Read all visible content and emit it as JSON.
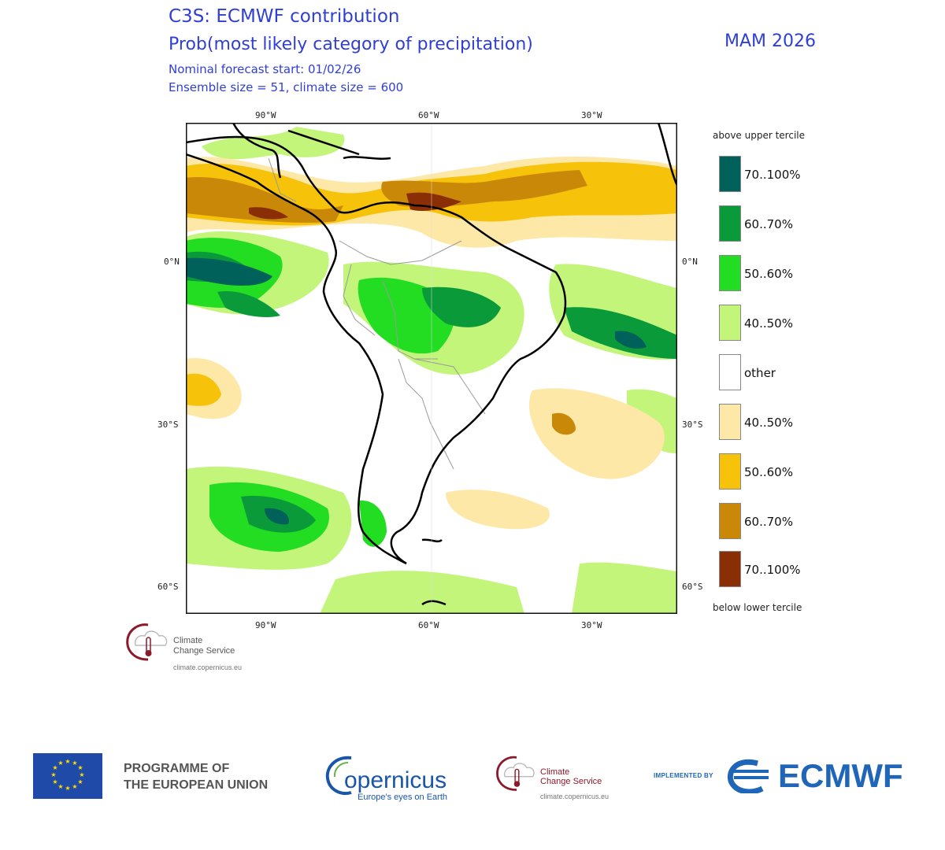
{
  "header": {
    "title_line1": "C3S: ECMWF contribution",
    "title_line2": "Prob(most likely category of precipitation)",
    "season": "MAM 2026",
    "forecast_start": "Nominal forecast start: 01/02/26",
    "ensemble_info": "Ensemble size = 51, climate size = 600"
  },
  "map": {
    "lon_labels": [
      "90°W",
      "60°W",
      "30°W"
    ],
    "lat_labels": [
      "0°N",
      "30°S",
      "60°S"
    ]
  },
  "legend": {
    "top_label": "above upper tercile",
    "bottom_label": "below lower tercile",
    "items": [
      {
        "label": "70..100%",
        "color": "#00605a"
      },
      {
        "label": "60..70%",
        "color": "#0a9a3a"
      },
      {
        "label": "50..60%",
        "color": "#22dd22"
      },
      {
        "label": "40..50%",
        "color": "#c2f57a"
      },
      {
        "label": "other",
        "color": "#ffffff"
      },
      {
        "label": "40..50%",
        "color": "#fde8a8"
      },
      {
        "label": "50..60%",
        "color": "#f7c20a"
      },
      {
        "label": "60..70%",
        "color": "#c98808"
      },
      {
        "label": "70..100%",
        "color": "#8a2e05"
      }
    ]
  },
  "c3s_badge": {
    "line1": "Climate",
    "line2": "Change Service",
    "url": "climate.copernicus.eu"
  },
  "footer": {
    "eu_line1": "PROGRAMME OF",
    "eu_line2": "THE EUROPEAN UNION",
    "copernicus_name": "opernicus",
    "copernicus_tagline": "Europe's eyes on Earth",
    "c3s_line1": "Climate",
    "c3s_line2": "Change Service",
    "c3s_url": "climate.copernicus.eu",
    "implemented_by": "IMPLEMENTED BY",
    "ecmwf": "ECMWF"
  },
  "colors": {
    "title_blue": "#2f3fd6",
    "c3s_red": "#8b1a2a",
    "eu_blue": "#1f4aa8",
    "eu_star": "#ffdd00",
    "ecmwf_blue": "#1f66b8",
    "copernicus_blue": "#1a56a8"
  }
}
